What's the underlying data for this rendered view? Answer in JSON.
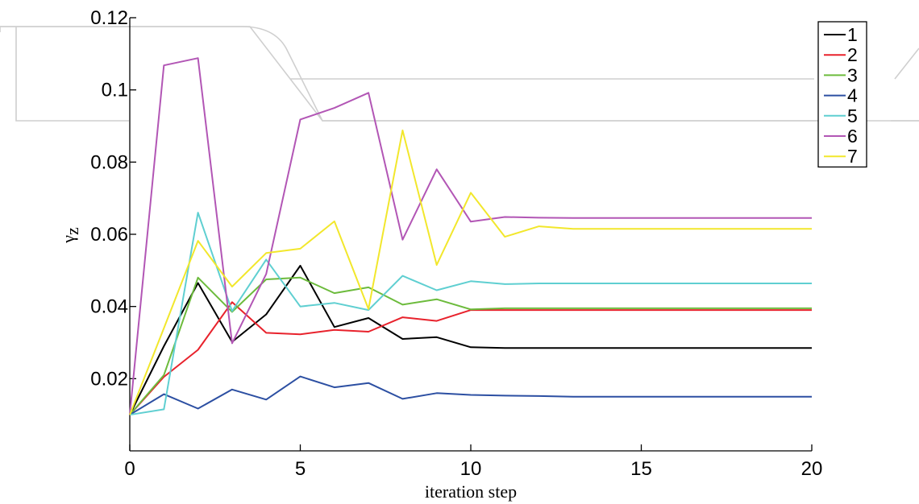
{
  "chart_data": {
    "type": "line",
    "xlabel": "iteration step",
    "ylabel_main": "γ",
    "ylabel_sub": "z",
    "xlim": [
      0,
      20
    ],
    "ylim": [
      0,
      0.12
    ],
    "xticks": [
      0,
      5,
      10,
      15,
      20
    ],
    "xtick_labels": [
      "0",
      "5",
      "10",
      "15",
      "20"
    ],
    "yticks": [
      0.02,
      0.04,
      0.06,
      0.08,
      0.1,
      0.12
    ],
    "ytick_labels": [
      "0.02",
      "0.04",
      "0.06",
      "0.08",
      "0.1",
      "0.12"
    ],
    "grid": false,
    "legend_position": "top-right",
    "x": [
      0,
      1,
      2,
      3,
      4,
      5,
      6,
      7,
      8,
      9,
      10,
      11,
      12,
      13,
      14,
      15,
      16,
      17,
      18,
      19,
      20
    ],
    "series": [
      {
        "name": "1",
        "color": "#000000",
        "values": [
          0.01,
          0.029,
          0.0465,
          0.0302,
          0.0378,
          0.0513,
          0.0343,
          0.0368,
          0.031,
          0.0315,
          0.0287,
          0.0285,
          0.0285,
          0.0285,
          0.0285,
          0.0285,
          0.0285,
          0.0285,
          0.0285,
          0.0285,
          0.0285
        ]
      },
      {
        "name": "2",
        "color": "#e8222c",
        "values": [
          0.01,
          0.0205,
          0.028,
          0.0412,
          0.0327,
          0.0323,
          0.0335,
          0.033,
          0.037,
          0.036,
          0.039,
          0.039,
          0.039,
          0.039,
          0.039,
          0.039,
          0.039,
          0.039,
          0.039,
          0.039,
          0.039
        ]
      },
      {
        "name": "3",
        "color": "#6cbb3c",
        "values": [
          0.01,
          0.021,
          0.048,
          0.0385,
          0.0475,
          0.048,
          0.0437,
          0.0453,
          0.0405,
          0.042,
          0.0392,
          0.0395,
          0.0395,
          0.0395,
          0.0395,
          0.0395,
          0.0395,
          0.0395,
          0.0395,
          0.0395,
          0.0395
        ]
      },
      {
        "name": "4",
        "color": "#2c4fa2",
        "values": [
          0.01,
          0.0157,
          0.0117,
          0.017,
          0.0142,
          0.0206,
          0.0176,
          0.0188,
          0.0144,
          0.016,
          0.0155,
          0.0153,
          0.0152,
          0.015,
          0.015,
          0.015,
          0.015,
          0.015,
          0.015,
          0.015,
          0.015
        ]
      },
      {
        "name": "5",
        "color": "#5fcfd1",
        "values": [
          0.01,
          0.0115,
          0.066,
          0.0387,
          0.053,
          0.04,
          0.041,
          0.039,
          0.0485,
          0.0445,
          0.047,
          0.0462,
          0.0464,
          0.0464,
          0.0464,
          0.0464,
          0.0464,
          0.0464,
          0.0464,
          0.0464,
          0.0464
        ]
      },
      {
        "name": "6",
        "color": "#b256b5",
        "values": [
          0.01,
          0.1068,
          0.1088,
          0.0298,
          0.049,
          0.0918,
          0.095,
          0.0992,
          0.0585,
          0.078,
          0.0635,
          0.0648,
          0.0646,
          0.0645,
          0.0645,
          0.0645,
          0.0645,
          0.0645,
          0.0645,
          0.0645,
          0.0645
        ]
      },
      {
        "name": "7",
        "color": "#f2e72c",
        "values": [
          0.01,
          0.034,
          0.0582,
          0.0455,
          0.0548,
          0.056,
          0.0636,
          0.0393,
          0.0888,
          0.0515,
          0.0715,
          0.0593,
          0.0622,
          0.0615,
          0.0615,
          0.0615,
          0.0615,
          0.0615,
          0.0615,
          0.0615,
          0.0615
        ]
      }
    ]
  }
}
